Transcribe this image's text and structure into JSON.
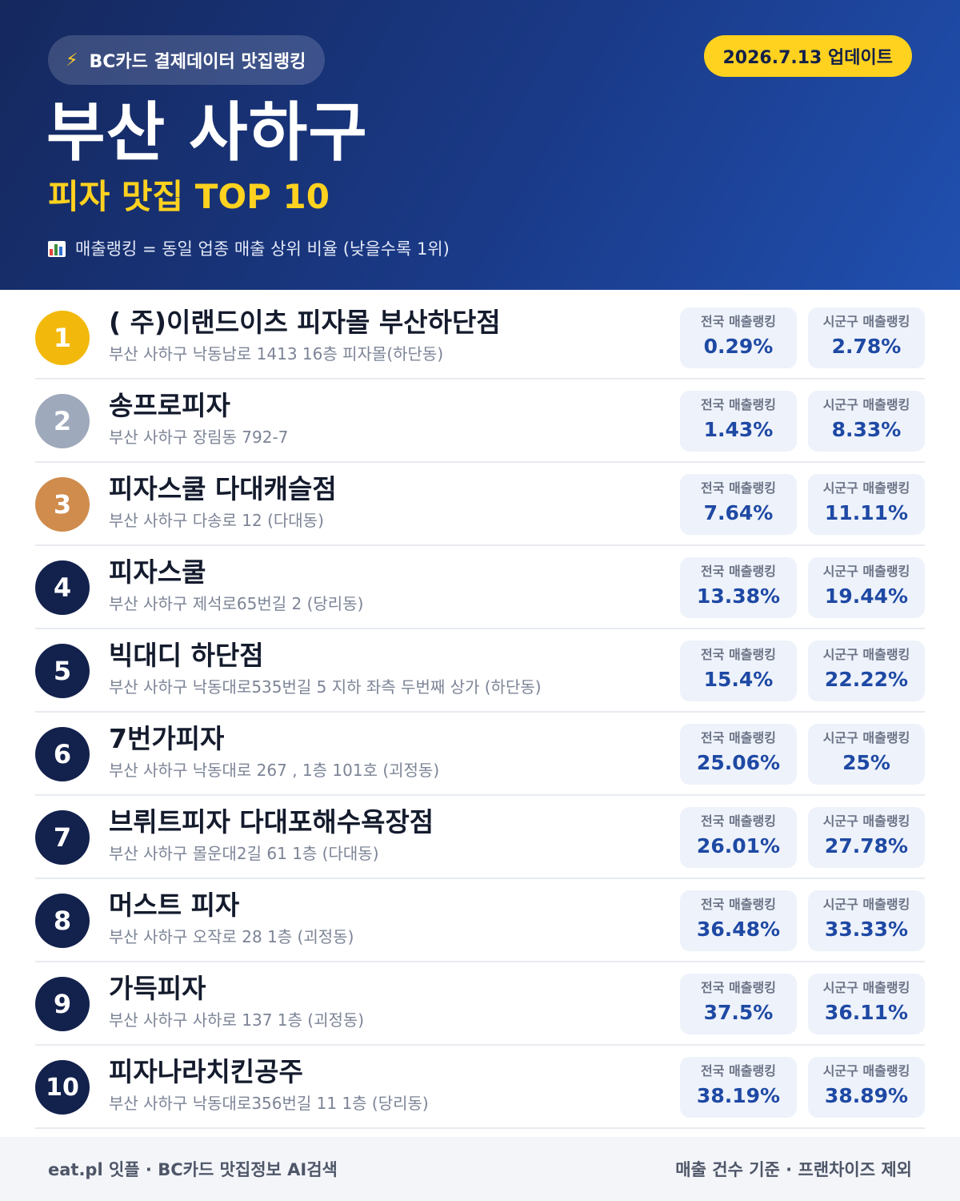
{
  "header": {
    "source_icon": "lightning-bolt-icon",
    "source_label": "BC카드 결제데이터 맛집랭킹",
    "update_date": "2026.7.13 업데이트",
    "region": "부산 사하구",
    "subtitle": "피자 맛집 TOP 10",
    "note_icon": "bar-chart-icon",
    "note": "매출랭킹 = 동일 업종 매출 상위 비율 (낮을수록 1위)"
  },
  "labels": {
    "national": "전국 매출랭킹",
    "local": "시군구 매출랭킹"
  },
  "colors": {
    "header_bg": "#1a3a88",
    "accent_yellow": "#ffd21f",
    "gold": "#f2b90c",
    "silver": "#9ea9bc",
    "bronze": "#cf8c4d",
    "rank_default": "#13214d",
    "value_blue": "#1e49a4"
  },
  "restaurants": [
    {
      "rank": "1",
      "name": "( 주)이랜드이츠 피자몰 부산하단점",
      "address": "부산 사하구 낙동남로 1413 16층 피자몰(하단동)",
      "national": "0.29%",
      "local": "2.78%"
    },
    {
      "rank": "2",
      "name": "송프로피자",
      "address": "부산 사하구 장림동 792-7",
      "national": "1.43%",
      "local": "8.33%"
    },
    {
      "rank": "3",
      "name": "피자스쿨 다대캐슬점",
      "address": "부산 사하구 다송로 12 (다대동)",
      "national": "7.64%",
      "local": "11.11%"
    },
    {
      "rank": "4",
      "name": "피자스쿨",
      "address": "부산 사하구 제석로65번길 2 (당리동)",
      "national": "13.38%",
      "local": "19.44%"
    },
    {
      "rank": "5",
      "name": "빅대디 하단점",
      "address": "부산 사하구 낙동대로535번길 5 지하 좌측 두번째 상가 (하단동)",
      "national": "15.4%",
      "local": "22.22%"
    },
    {
      "rank": "6",
      "name": "7번가피자",
      "address": "부산 사하구 낙동대로 267 , 1층 101호 (괴정동)",
      "national": "25.06%",
      "local": "25%"
    },
    {
      "rank": "7",
      "name": "브뤼트피자 다대포해수욕장점",
      "address": "부산 사하구 몰운대2길 61 1층 (다대동)",
      "national": "26.01%",
      "local": "27.78%"
    },
    {
      "rank": "8",
      "name": "머스트 피자",
      "address": "부산 사하구 오작로 28 1층 (괴정동)",
      "national": "36.48%",
      "local": "33.33%"
    },
    {
      "rank": "9",
      "name": "가득피자",
      "address": "부산 사하구 사하로 137 1층 (괴정동)",
      "national": "37.5%",
      "local": "36.11%"
    },
    {
      "rank": "10",
      "name": "피자나라치킨공주",
      "address": "부산 사하구 낙동대로356번길 11 1층 (당리동)",
      "national": "38.19%",
      "local": "38.89%"
    }
  ],
  "footer": {
    "left": "eat.pl 잇플 · BC카드 맛집정보 AI검색",
    "right": "매출 건수 기준 · 프랜차이즈 제외"
  }
}
